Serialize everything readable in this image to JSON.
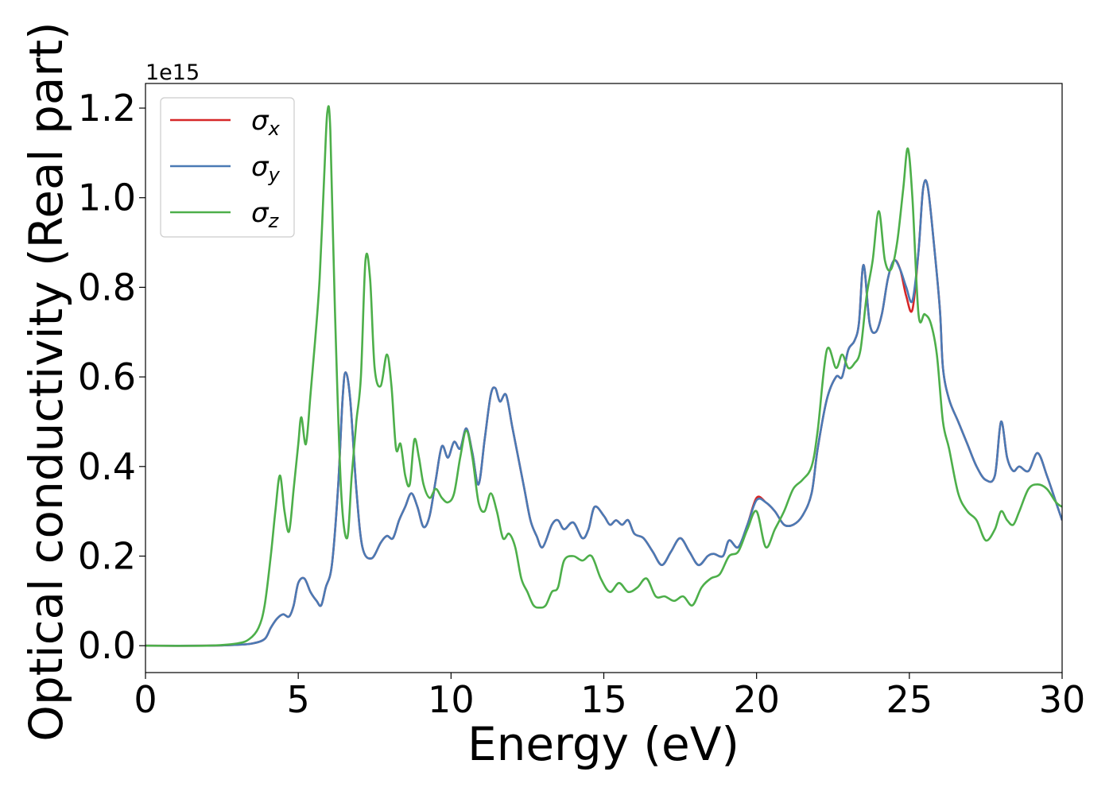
{
  "chart_data": {
    "type": "line",
    "xlabel": "Energy (eV)",
    "ylabel": "Optical conductivity (Real part)",
    "y_offset_label": "1e15",
    "xlim": [
      0,
      30
    ],
    "ylim": [
      -0.06,
      1.255
    ],
    "xticks": [
      0,
      5,
      10,
      15,
      20,
      25,
      30
    ],
    "xtick_labels": [
      "0",
      "5",
      "10",
      "15",
      "20",
      "25",
      "30"
    ],
    "yticks": [
      0.0,
      0.2,
      0.4,
      0.6,
      0.8,
      1.0,
      1.2
    ],
    "ytick_labels": [
      "0.0",
      "0.2",
      "0.4",
      "0.6",
      "0.8",
      "1.0",
      "1.2"
    ],
    "grid": false,
    "legend_position": "top-left",
    "series": [
      {
        "name": "σx",
        "symbol": "σ",
        "subscript": "x",
        "color": "#d62728",
        "x": [
          0,
          2,
          3,
          3.5,
          3.9,
          4.1,
          4.3,
          4.5,
          4.7,
          4.85,
          5.0,
          5.2,
          5.4,
          5.6,
          5.75,
          5.9,
          6.1,
          6.3,
          6.45,
          6.55,
          6.7,
          6.9,
          7.1,
          7.4,
          7.7,
          7.9,
          8.1,
          8.3,
          8.5,
          8.7,
          8.9,
          9.1,
          9.3,
          9.5,
          9.7,
          9.9,
          10.1,
          10.3,
          10.5,
          10.7,
          10.9,
          11.1,
          11.3,
          11.45,
          11.6,
          11.8,
          12.0,
          12.2,
          12.4,
          12.6,
          12.8,
          13.0,
          13.3,
          13.5,
          13.7,
          14.0,
          14.3,
          14.5,
          14.7,
          15.0,
          15.2,
          15.4,
          15.6,
          15.8,
          16.0,
          16.3,
          16.6,
          16.9,
          17.2,
          17.5,
          17.8,
          18.1,
          18.4,
          18.6,
          18.9,
          19.1,
          19.4,
          19.7,
          20.0,
          20.3,
          20.6,
          20.9,
          21.2,
          21.5,
          21.8,
          22.0,
          22.3,
          22.6,
          22.8,
          23.0,
          23.2,
          23.35,
          23.5,
          23.7,
          23.9,
          24.1,
          24.3,
          24.5,
          24.7,
          24.9,
          25.1,
          25.3,
          25.45,
          25.6,
          25.8,
          26.0,
          26.1,
          26.3,
          26.6,
          26.9,
          27.2,
          27.5,
          27.8,
          28.0,
          28.2,
          28.4,
          28.6,
          28.9,
          29.2,
          29.5,
          29.8,
          30.0
        ],
        "y": [
          0,
          0,
          0.002,
          0.005,
          0.015,
          0.04,
          0.06,
          0.07,
          0.065,
          0.09,
          0.14,
          0.15,
          0.12,
          0.1,
          0.09,
          0.13,
          0.18,
          0.35,
          0.55,
          0.61,
          0.55,
          0.35,
          0.22,
          0.195,
          0.23,
          0.245,
          0.24,
          0.28,
          0.31,
          0.34,
          0.31,
          0.265,
          0.29,
          0.37,
          0.445,
          0.42,
          0.455,
          0.44,
          0.485,
          0.43,
          0.36,
          0.46,
          0.56,
          0.575,
          0.545,
          0.56,
          0.49,
          0.42,
          0.35,
          0.28,
          0.245,
          0.22,
          0.27,
          0.28,
          0.26,
          0.275,
          0.24,
          0.26,
          0.31,
          0.29,
          0.27,
          0.28,
          0.27,
          0.28,
          0.25,
          0.24,
          0.21,
          0.18,
          0.21,
          0.24,
          0.21,
          0.18,
          0.2,
          0.205,
          0.2,
          0.235,
          0.22,
          0.27,
          0.33,
          0.32,
          0.3,
          0.27,
          0.27,
          0.29,
          0.34,
          0.44,
          0.55,
          0.6,
          0.6,
          0.66,
          0.68,
          0.72,
          0.85,
          0.72,
          0.7,
          0.74,
          0.82,
          0.86,
          0.84,
          0.78,
          0.75,
          0.88,
          1.02,
          1.025,
          0.9,
          0.75,
          0.62,
          0.55,
          0.5,
          0.45,
          0.4,
          0.37,
          0.38,
          0.5,
          0.42,
          0.39,
          0.4,
          0.39,
          0.43,
          0.38,
          0.32,
          0.28
        ]
      },
      {
        "name": "σy",
        "symbol": "σ",
        "subscript": "y",
        "color": "#4a7ab5",
        "x": [
          0,
          2,
          3,
          3.5,
          3.9,
          4.1,
          4.3,
          4.5,
          4.7,
          4.85,
          5.0,
          5.2,
          5.4,
          5.6,
          5.75,
          5.9,
          6.1,
          6.3,
          6.45,
          6.55,
          6.7,
          6.9,
          7.1,
          7.4,
          7.7,
          7.9,
          8.1,
          8.3,
          8.5,
          8.7,
          8.9,
          9.1,
          9.3,
          9.5,
          9.7,
          9.9,
          10.1,
          10.3,
          10.5,
          10.7,
          10.9,
          11.1,
          11.3,
          11.45,
          11.6,
          11.8,
          12.0,
          12.2,
          12.4,
          12.6,
          12.8,
          13.0,
          13.3,
          13.5,
          13.7,
          14.0,
          14.3,
          14.5,
          14.7,
          15.0,
          15.2,
          15.4,
          15.6,
          15.8,
          16.0,
          16.3,
          16.6,
          16.9,
          17.2,
          17.5,
          17.8,
          18.1,
          18.4,
          18.6,
          18.9,
          19.1,
          19.4,
          19.7,
          20.0,
          20.3,
          20.6,
          20.9,
          21.2,
          21.5,
          21.8,
          22.0,
          22.3,
          22.6,
          22.8,
          23.0,
          23.2,
          23.35,
          23.5,
          23.7,
          23.9,
          24.1,
          24.3,
          24.5,
          24.7,
          24.9,
          25.1,
          25.3,
          25.45,
          25.6,
          25.8,
          26.0,
          26.1,
          26.3,
          26.6,
          26.9,
          27.2,
          27.5,
          27.8,
          28.0,
          28.2,
          28.4,
          28.6,
          28.9,
          29.2,
          29.5,
          29.8,
          30.0
        ],
        "y": [
          0,
          0,
          0.002,
          0.005,
          0.015,
          0.04,
          0.06,
          0.07,
          0.065,
          0.09,
          0.14,
          0.15,
          0.12,
          0.1,
          0.09,
          0.13,
          0.18,
          0.35,
          0.55,
          0.61,
          0.55,
          0.35,
          0.22,
          0.195,
          0.23,
          0.245,
          0.24,
          0.28,
          0.31,
          0.34,
          0.31,
          0.265,
          0.29,
          0.37,
          0.445,
          0.42,
          0.455,
          0.44,
          0.485,
          0.43,
          0.36,
          0.46,
          0.56,
          0.575,
          0.545,
          0.56,
          0.49,
          0.42,
          0.35,
          0.28,
          0.245,
          0.22,
          0.27,
          0.28,
          0.26,
          0.275,
          0.24,
          0.26,
          0.31,
          0.29,
          0.27,
          0.28,
          0.27,
          0.28,
          0.25,
          0.24,
          0.21,
          0.18,
          0.21,
          0.24,
          0.21,
          0.18,
          0.2,
          0.205,
          0.2,
          0.235,
          0.22,
          0.27,
          0.325,
          0.32,
          0.3,
          0.27,
          0.27,
          0.29,
          0.34,
          0.44,
          0.55,
          0.6,
          0.6,
          0.66,
          0.68,
          0.72,
          0.85,
          0.72,
          0.7,
          0.74,
          0.82,
          0.86,
          0.84,
          0.8,
          0.77,
          0.88,
          1.02,
          1.025,
          0.9,
          0.75,
          0.62,
          0.55,
          0.5,
          0.45,
          0.4,
          0.37,
          0.38,
          0.5,
          0.42,
          0.39,
          0.4,
          0.39,
          0.43,
          0.38,
          0.32,
          0.28
        ]
      },
      {
        "name": "σz",
        "symbol": "σ",
        "subscript": "z",
        "color": "#4daf4a",
        "x": [
          0,
          2,
          3,
          3.4,
          3.7,
          3.9,
          4.1,
          4.25,
          4.4,
          4.55,
          4.7,
          4.85,
          5.0,
          5.1,
          5.25,
          5.4,
          5.55,
          5.7,
          5.85,
          5.95,
          6.05,
          6.2,
          6.4,
          6.6,
          6.75,
          6.9,
          7.05,
          7.2,
          7.35,
          7.5,
          7.7,
          7.9,
          8.05,
          8.2,
          8.35,
          8.5,
          8.65,
          8.8,
          8.95,
          9.1,
          9.3,
          9.5,
          9.7,
          9.9,
          10.1,
          10.3,
          10.5,
          10.7,
          10.9,
          11.1,
          11.3,
          11.5,
          11.7,
          11.9,
          12.1,
          12.3,
          12.5,
          12.7,
          12.9,
          13.1,
          13.3,
          13.5,
          13.7,
          14.0,
          14.3,
          14.6,
          14.9,
          15.2,
          15.5,
          15.8,
          16.1,
          16.4,
          16.7,
          17.0,
          17.3,
          17.6,
          17.9,
          18.2,
          18.5,
          18.8,
          19.1,
          19.4,
          19.7,
          20.0,
          20.3,
          20.6,
          20.9,
          21.2,
          21.5,
          21.8,
          22.0,
          22.3,
          22.6,
          22.8,
          23.0,
          23.2,
          23.4,
          23.6,
          23.8,
          24.0,
          24.2,
          24.4,
          24.6,
          24.8,
          24.95,
          25.1,
          25.3,
          25.5,
          25.7,
          25.9,
          26.1,
          26.3,
          26.6,
          26.9,
          27.2,
          27.5,
          27.8,
          28.0,
          28.2,
          28.4,
          28.6,
          28.9,
          29.2,
          29.5,
          29.8,
          30.0
        ],
        "y": [
          0,
          0,
          0.005,
          0.015,
          0.04,
          0.09,
          0.2,
          0.3,
          0.38,
          0.3,
          0.255,
          0.35,
          0.45,
          0.51,
          0.45,
          0.56,
          0.68,
          0.82,
          1.05,
          1.19,
          1.15,
          0.75,
          0.35,
          0.24,
          0.38,
          0.5,
          0.6,
          0.86,
          0.82,
          0.62,
          0.58,
          0.65,
          0.58,
          0.44,
          0.45,
          0.38,
          0.36,
          0.46,
          0.42,
          0.36,
          0.33,
          0.35,
          0.33,
          0.32,
          0.34,
          0.42,
          0.48,
          0.42,
          0.32,
          0.3,
          0.34,
          0.3,
          0.24,
          0.25,
          0.22,
          0.15,
          0.12,
          0.09,
          0.085,
          0.09,
          0.12,
          0.13,
          0.19,
          0.2,
          0.19,
          0.2,
          0.15,
          0.12,
          0.14,
          0.12,
          0.13,
          0.15,
          0.11,
          0.11,
          0.1,
          0.11,
          0.09,
          0.13,
          0.15,
          0.16,
          0.2,
          0.21,
          0.26,
          0.3,
          0.22,
          0.26,
          0.3,
          0.35,
          0.37,
          0.4,
          0.48,
          0.66,
          0.62,
          0.65,
          0.62,
          0.63,
          0.66,
          0.78,
          0.86,
          0.97,
          0.86,
          0.84,
          0.9,
          1.02,
          1.11,
          1.0,
          0.74,
          0.74,
          0.72,
          0.65,
          0.5,
          0.44,
          0.34,
          0.3,
          0.28,
          0.235,
          0.26,
          0.3,
          0.28,
          0.27,
          0.3,
          0.35,
          0.36,
          0.35,
          0.32,
          0.31
        ]
      }
    ]
  }
}
